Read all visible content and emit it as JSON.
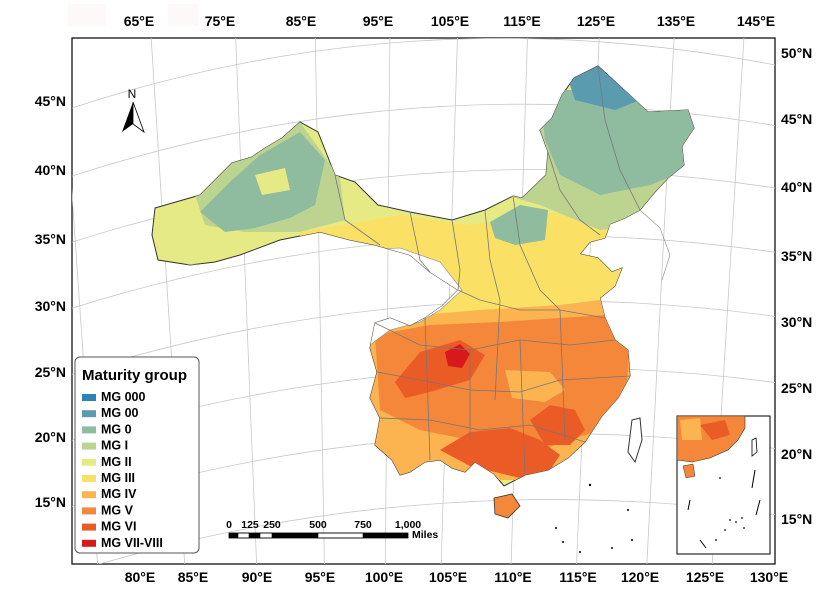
{
  "map": {
    "top_lon_labels": [
      "65°E",
      "75°E",
      "85°E",
      "95°E",
      "105°E",
      "115°E",
      "125°E",
      "135°E",
      "145°E"
    ],
    "bottom_lon_labels": [
      "80°E",
      "85°E",
      "90°E",
      "95°E",
      "100°E",
      "105°E",
      "110°E",
      "115°E",
      "120°E",
      "125°E",
      "130°E"
    ],
    "left_lat_labels": [
      "45°N",
      "40°N",
      "35°N",
      "30°N",
      "25°N",
      "20°N",
      "15°N"
    ],
    "right_lat_labels": [
      "50°N",
      "45°N",
      "40°N",
      "35°N",
      "30°N",
      "25°N",
      "20°N",
      "15°N"
    ],
    "north_arrow": "N"
  },
  "legend": {
    "title": "Maturity group",
    "items": [
      {
        "label": "MG 000",
        "color": "#2b83ba"
      },
      {
        "label": "MG 00",
        "color": "#5b9bb0"
      },
      {
        "label": "MG 0",
        "color": "#8fbb9f"
      },
      {
        "label": "MG I",
        "color": "#bcd48f"
      },
      {
        "label": "MG II",
        "color": "#e6ea85"
      },
      {
        "label": "MG III",
        "color": "#fbe066"
      },
      {
        "label": "MG IV",
        "color": "#fbb450"
      },
      {
        "label": "MG V",
        "color": "#f5873a"
      },
      {
        "label": "MG VI",
        "color": "#ea5b26"
      },
      {
        "label": "MG VII-VIII",
        "color": "#d7191c"
      }
    ]
  },
  "scale_bar": {
    "ticks": [
      "0",
      "125",
      "250",
      "500",
      "750",
      "1,000"
    ],
    "unit": "Miles"
  }
}
